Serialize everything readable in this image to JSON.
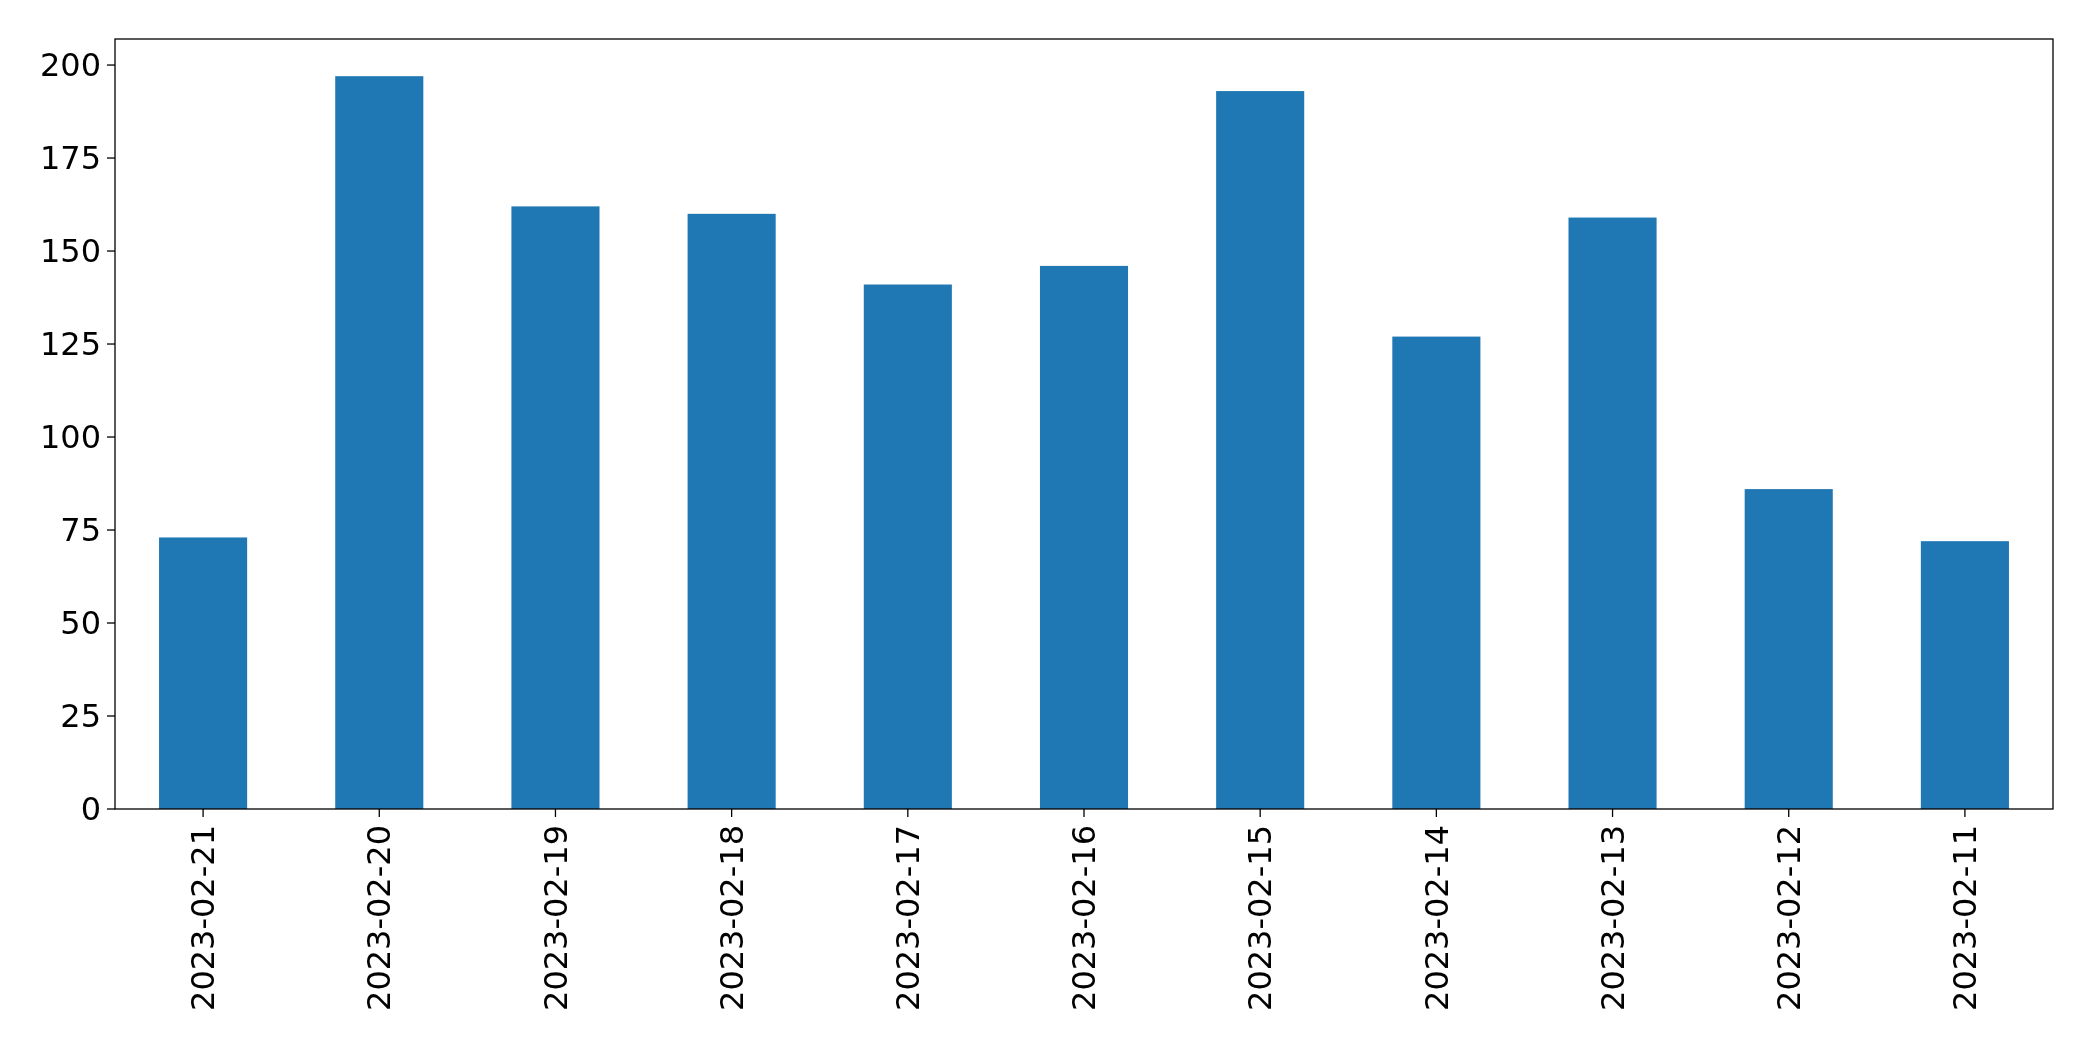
{
  "chart_data": {
    "type": "bar",
    "categories": [
      "2023-02-21",
      "2023-02-20",
      "2023-02-19",
      "2023-02-18",
      "2023-02-17",
      "2023-02-16",
      "2023-02-15",
      "2023-02-14",
      "2023-02-13",
      "2023-02-12",
      "2023-02-11"
    ],
    "values": [
      73,
      197,
      162,
      160,
      141,
      146,
      193,
      127,
      159,
      86,
      72
    ],
    "color": "#1f77b4",
    "ylim": [
      0,
      207
    ],
    "yticks": [
      0,
      25,
      50,
      75,
      100,
      125,
      150,
      175,
      200
    ],
    "grid": false
  }
}
